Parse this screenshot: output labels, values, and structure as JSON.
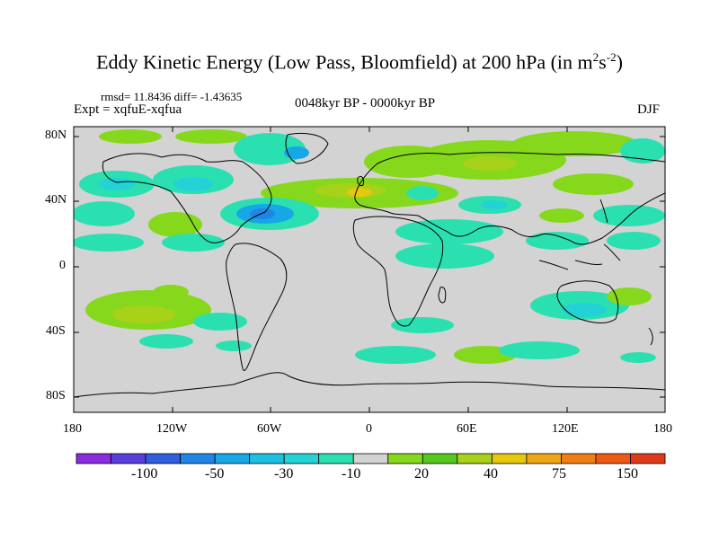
{
  "title": {
    "main": "Eddy Kinetic Energy (Low Pass, Bloomfield) at 200 hPa (in m",
    "sup1": "2",
    "mid": "s",
    "sup2": "-2",
    "end": ")"
  },
  "stats": {
    "rmsd": "rmsd= 11.8436",
    "diff": "diff= -1.43635"
  },
  "experiment": "Expt = xqfuE-xqfua",
  "period": "0048kyr BP - 0000kyr BP",
  "season": "DJF",
  "axes": {
    "lat_labels": [
      "80N",
      "40N",
      "0",
      "40S",
      "80S"
    ],
    "lon_labels": [
      "180",
      "120W",
      "60W",
      "0",
      "60E",
      "120E",
      "180"
    ]
  },
  "colorbar": {
    "colors": [
      "#8a2be2",
      "#5a3ee0",
      "#2f5fe0",
      "#1f86e6",
      "#15a7e6",
      "#1cc0e0",
      "#23d2d6",
      "#2be0b0",
      "#d3d3d3",
      "#86d81c",
      "#58c81e",
      "#a8d21a",
      "#e6c80e",
      "#f0a616",
      "#f07e16",
      "#ec5a14",
      "#e0381a"
    ],
    "labels": [
      "-100",
      "-50",
      "-30",
      "-10",
      "20",
      "40",
      "75",
      "150"
    ]
  },
  "palette": {
    "land_bg": "#d3d3d3",
    "pos1": "#86d81c",
    "pos2": "#58c81e",
    "pos3": "#a8d21a",
    "pos4": "#e6c80e",
    "neg1": "#2be0b0",
    "neg2": "#23d2d6",
    "neg3": "#15a7e6",
    "neg4": "#1f86e6"
  }
}
